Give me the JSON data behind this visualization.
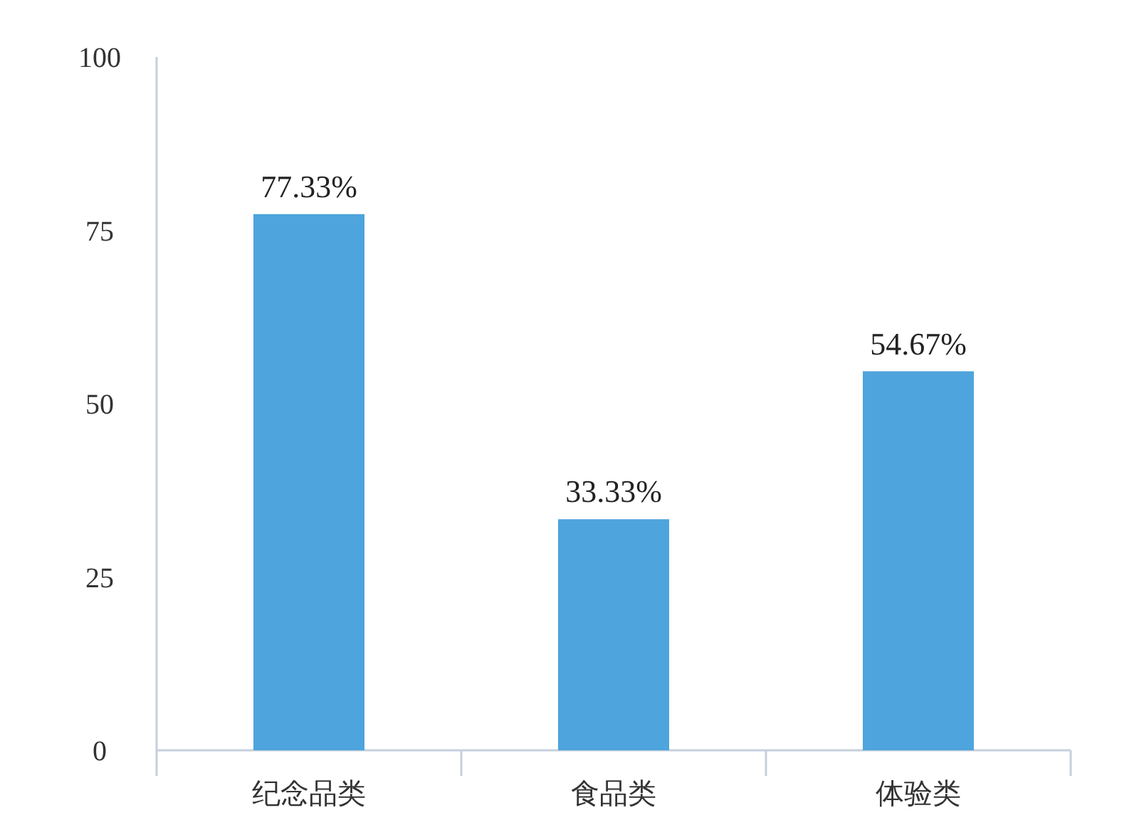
{
  "chart_data": {
    "type": "bar",
    "categories": [
      "纪念品类",
      "食品类",
      "体验类"
    ],
    "values": [
      77.33,
      33.33,
      54.67
    ],
    "color": "#4ea4dc",
    "value_labels": [
      "77.33%",
      "33.33%",
      "54.67%"
    ],
    "ylim": [
      0,
      100
    ],
    "yticks": [
      0,
      25,
      50,
      75,
      100
    ]
  }
}
